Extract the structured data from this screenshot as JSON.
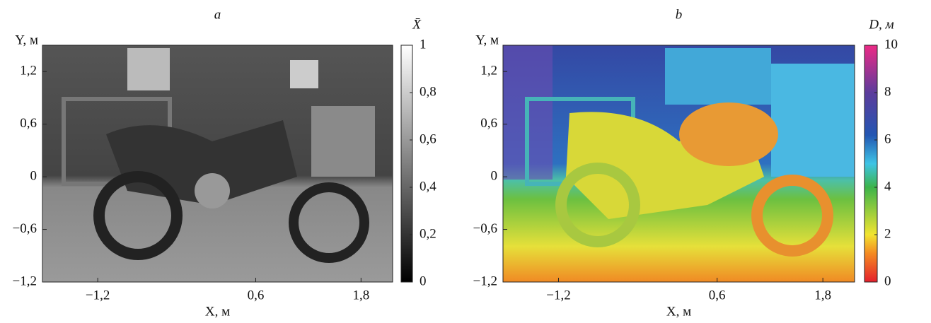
{
  "chart_data": [
    {
      "type": "image",
      "title": "a",
      "xlabel": "X, м",
      "ylabel": "Y, м",
      "xlim": [
        -1.83,
        2.16
      ],
      "ylim": [
        -1.2,
        1.5
      ],
      "xticks": [
        {
          "value": -1.2,
          "label": "−1,2"
        },
        {
          "value": 0.6,
          "label": "0,6"
        },
        {
          "value": 1.8,
          "label": "1,8"
        }
      ],
      "yticks": [
        {
          "value": -1.2,
          "label": "−1,2"
        },
        {
          "value": -0.6,
          "label": "−0,6"
        },
        0,
        {
          "value": 0.6,
          "label": "0,6"
        },
        {
          "value": 1.2,
          "label": "1,2"
        }
      ],
      "colorbar": {
        "label": "X̄",
        "colormap": "gray",
        "lim": [
          0,
          1
        ],
        "ticks": [
          0,
          {
            "value": 0.2,
            "label": "0,2"
          },
          {
            "value": 0.4,
            "label": "0,4"
          },
          {
            "value": 0.6,
            "label": "0,6"
          },
          {
            "value": 0.8,
            "label": "0,8"
          },
          1
        ]
      }
    },
    {
      "type": "image",
      "title": "b",
      "xlabel": "X, м",
      "ylabel": "Y, м",
      "xlim": [
        -1.83,
        2.16
      ],
      "ylim": [
        -1.2,
        1.5
      ],
      "xticks": [
        {
          "value": -1.2,
          "label": "−1,2"
        },
        {
          "value": 0.6,
          "label": "0,6"
        },
        {
          "value": 1.8,
          "label": "1,8"
        }
      ],
      "yticks": [
        {
          "value": -1.2,
          "label": "−1,2"
        },
        {
          "value": -0.6,
          "label": "−0,6"
        },
        0,
        {
          "value": 0.6,
          "label": "0,6"
        },
        {
          "value": 1.2,
          "label": "1,2"
        }
      ],
      "colorbar": {
        "label": "D, м",
        "colormap": "jet",
        "lim": [
          0,
          10
        ],
        "ticks": [
          0,
          2,
          4,
          6,
          8,
          10
        ]
      }
    }
  ]
}
